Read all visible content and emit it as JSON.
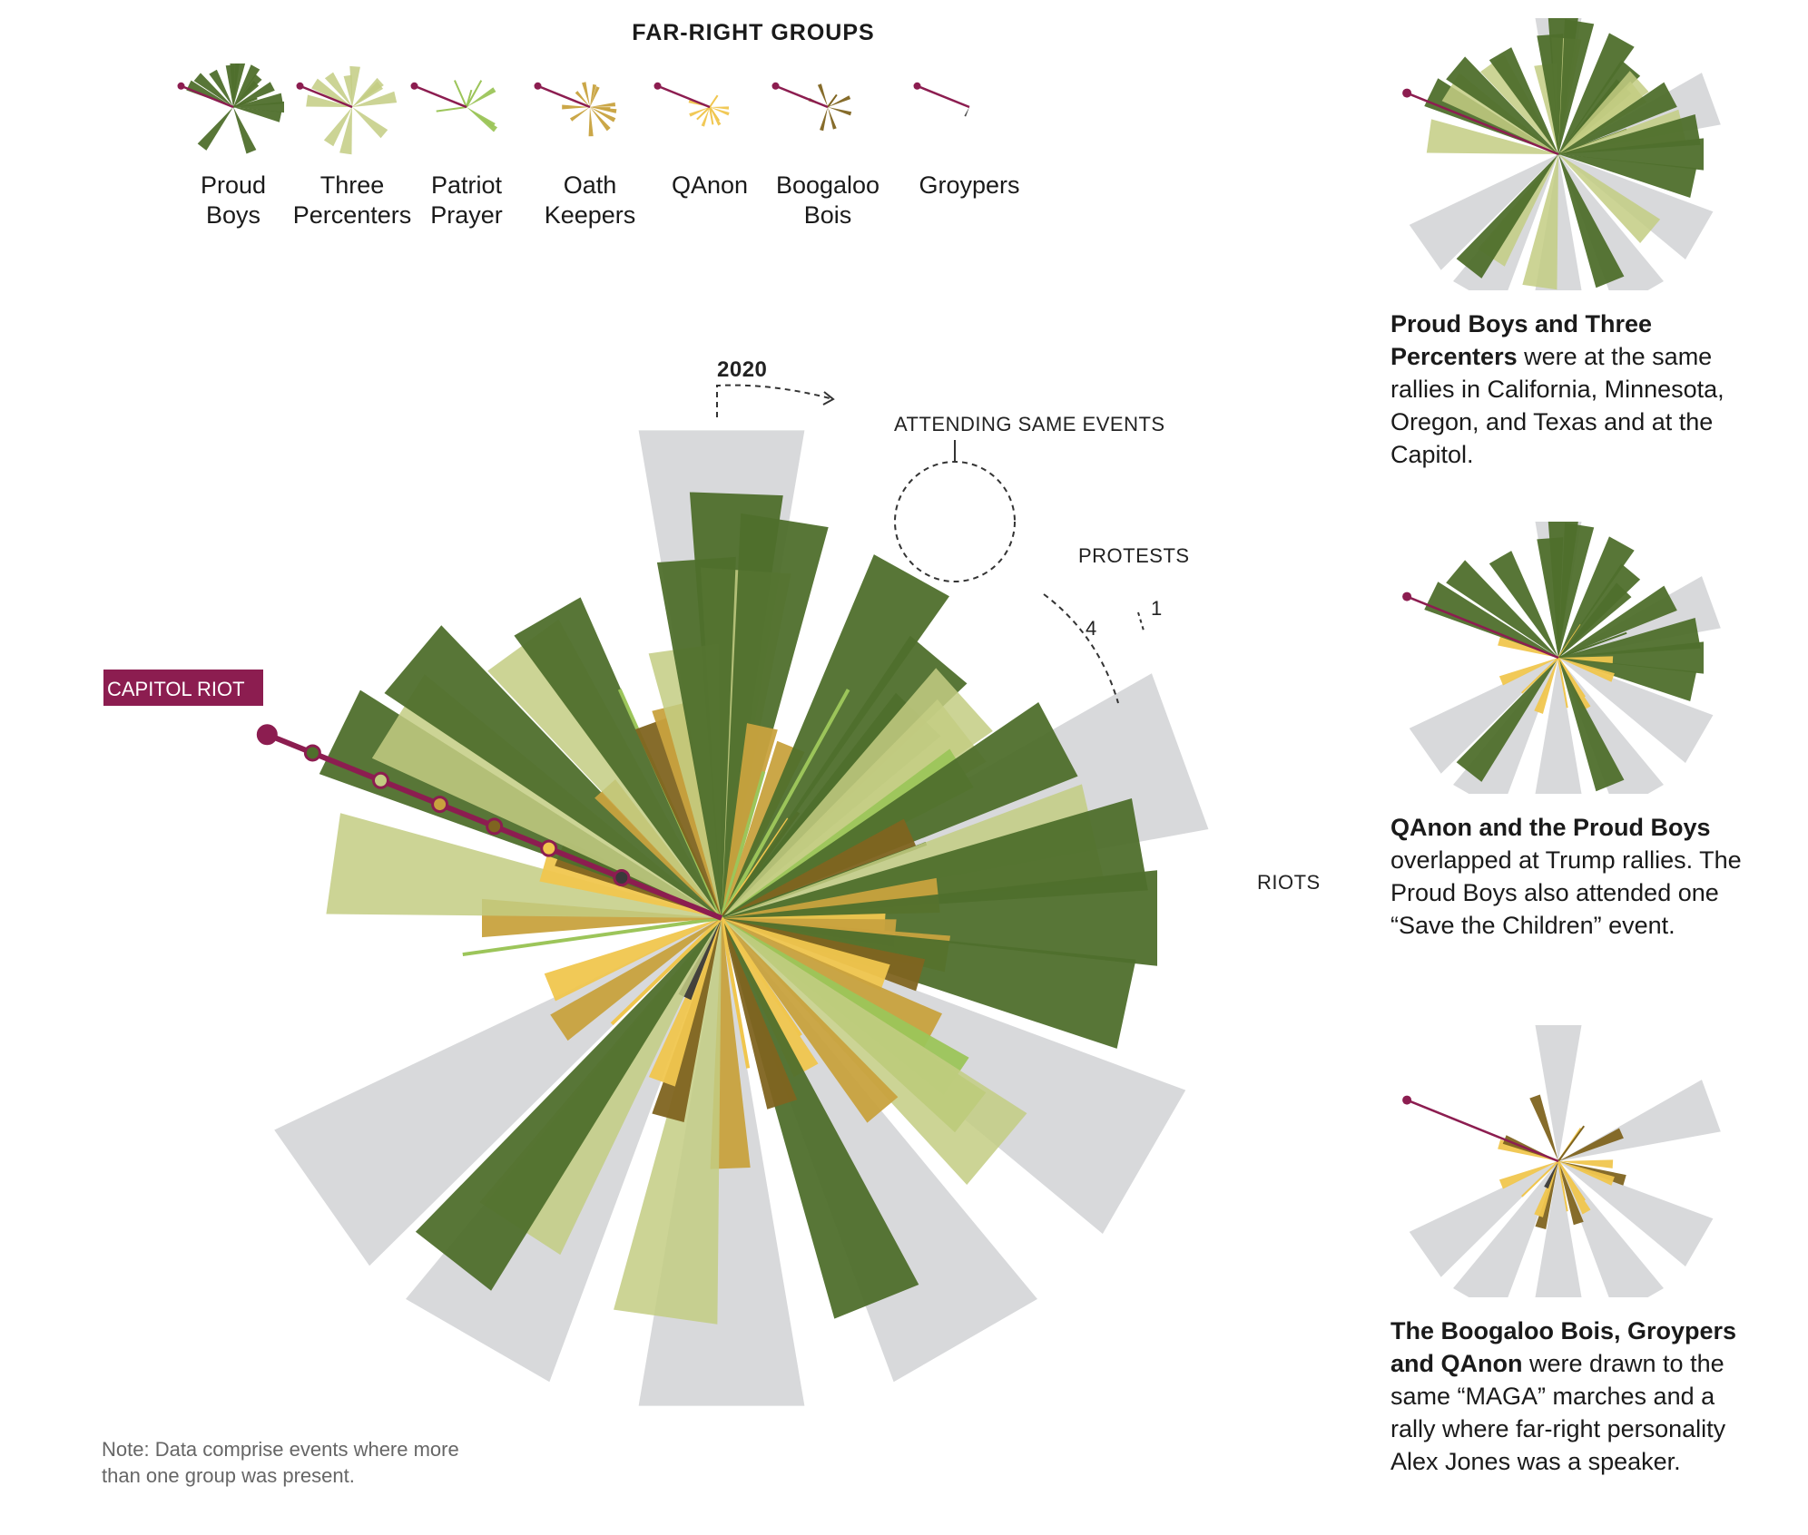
{
  "header": "FAR-RIGHT GROUPS",
  "colors": {
    "proud_boys": "#4f6f2c",
    "three_percenters": "#c3cc82",
    "patriot_prayer": "#9cc55a",
    "oath_keepers": "#c8a23e",
    "qanon": "#f0c64e",
    "boogaloo_bois": "#7f6420",
    "groypers": "#3a3a3a",
    "capitol_riot": "#8c1d50",
    "riots_wedge": "#d8d9db"
  },
  "legend": [
    {
      "label": "Proud\nBoys",
      "color_key": "proud_boys",
      "icon": "proud-boys-icon"
    },
    {
      "label": "Three\nPercenters",
      "color_key": "three_percenters",
      "icon": "three-percenters-icon"
    },
    {
      "label": "Patriot\nPrayer",
      "color_key": "patriot_prayer",
      "icon": "patriot-prayer-icon"
    },
    {
      "label": "Oath\nKeepers",
      "color_key": "oath_keepers",
      "icon": "oath-keepers-icon"
    },
    {
      "label": "QAnon",
      "color_key": "qanon",
      "icon": "qanon-icon"
    },
    {
      "label": "Boogaloo\nBois",
      "color_key": "boogaloo_bois",
      "icon": "boogaloo-bois-icon"
    },
    {
      "label": "Groypers",
      "color_key": "groypers",
      "icon": "groypers-icon"
    }
  ],
  "annotations": {
    "year": "2020",
    "attending": "ATTENDING SAME EVENTS",
    "protests": "PROTESTS",
    "scale_4": "4",
    "scale_1": "1",
    "riots": "RIOTS",
    "capitol_riot": "CAPITOL RIOT"
  },
  "panels": [
    {
      "bold": "Proud Boys and Three Percenters",
      "text": " were at the same rallies in California, Minnesota, Oregon, and Texas and at the Capitol."
    },
    {
      "bold": "QAnon and the Proud Boys",
      "text": " overlapped at Trump rallies. The Proud Boys also attended one “Save the Children” event."
    },
    {
      "bold": "The Boogaloo Bois, Groypers and QAnon",
      "text": " were drawn to the same “MAGA” marches and a rally where far-right personality Alex Jones was a speaker."
    }
  ],
  "note": "Note: Data comprise events where more than one group was present.",
  "chart_data": {
    "type": "radial-bar",
    "description_units": "each spoke is one event where more than one group was present; wedge length = number of group members/appearances (scale 1–4)",
    "event_types": [
      "Protests",
      "Riots",
      "Capitol riot"
    ],
    "groups": [
      "Proud Boys",
      "Three Percenters",
      "Patriot Prayer",
      "Oath Keepers",
      "QAnon",
      "Boogaloo Bois",
      "Groypers"
    ],
    "riot_angles": [
      {
        "angle": 0,
        "value": 4
      },
      {
        "angle": 70,
        "value": 4
      },
      {
        "angle": 120,
        "value": 4
      },
      {
        "angle": 150,
        "value": 4
      },
      {
        "angle": 180,
        "value": 4
      },
      {
        "angle": 210,
        "value": 4
      },
      {
        "angle": 235,
        "value": 4
      }
    ],
    "spokes": [
      {
        "angle": 2,
        "group": "proud_boys",
        "value": 3.9
      },
      {
        "angle": 4,
        "group": "three_percenters",
        "value": 3.2
      },
      {
        "angle": 9,
        "group": "proud_boys",
        "value": 3.7
      },
      {
        "angle": 12,
        "group": "oath_keepers",
        "value": 1.8
      },
      {
        "angle": 16,
        "group": "patriot_prayer",
        "value": 1.4
      },
      {
        "angle": 22,
        "group": "oath_keepers",
        "value": 1.7
      },
      {
        "angle": 29,
        "group": "proud_boys",
        "value": 3.6
      },
      {
        "angle": 29,
        "group": "patriot_prayer",
        "value": 2.4
      },
      {
        "angle": 34,
        "group": "qanon",
        "value": 1.1
      },
      {
        "angle": 36,
        "group": "boogaloo_bois",
        "value": 1.2
      },
      {
        "angle": 40,
        "group": "proud_boys",
        "value": 3.1
      },
      {
        "angle": 44,
        "group": "proud_boys",
        "value": 2.6
      },
      {
        "angle": 48,
        "group": "three_percenters",
        "value": 3.0
      },
      {
        "angle": 52,
        "group": "three_percenters",
        "value": 2.8
      },
      {
        "angle": 58,
        "group": "patriot_prayer",
        "value": 2.6
      },
      {
        "angle": 62,
        "group": "proud_boys",
        "value": 3.5
      },
      {
        "angle": 66,
        "group": "boogaloo_bois",
        "value": 1.9
      },
      {
        "angle": 70,
        "group": "proud_boys",
        "value": 2.0
      },
      {
        "angle": 77,
        "group": "three_percenters",
        "value": 3.5
      },
      {
        "angle": 80,
        "group": "proud_boys",
        "value": 3.9
      },
      {
        "angle": 84,
        "group": "oath_keepers",
        "value": 2.0
      },
      {
        "angle": 90,
        "group": "proud_boys",
        "value": 4.0
      },
      {
        "angle": 93,
        "group": "qanon",
        "value": 1.5
      },
      {
        "angle": 95,
        "group": "oath_keepers",
        "value": 1.6
      },
      {
        "angle": 99,
        "group": "oath_keepers",
        "value": 2.1
      },
      {
        "angle": 102,
        "group": "proud_boys",
        "value": 3.8
      },
      {
        "angle": 106,
        "group": "boogaloo_bois",
        "value": 1.9
      },
      {
        "angle": 110,
        "group": "qanon",
        "value": 1.6
      },
      {
        "angle": 118,
        "group": "oath_keepers",
        "value": 2.2
      },
      {
        "angle": 124,
        "group": "patriot_prayer",
        "value": 2.6
      },
      {
        "angle": 128,
        "group": "patriot_prayer",
        "value": 2.9
      },
      {
        "angle": 130,
        "group": "three_percenters",
        "value": 3.3
      },
      {
        "angle": 140,
        "group": "oath_keepers",
        "value": 2.3
      },
      {
        "angle": 146,
        "group": "qanon",
        "value": 1.3
      },
      {
        "angle": 151,
        "group": "qanon",
        "value": 1.6
      },
      {
        "angle": 158,
        "group": "proud_boys",
        "value": 3.8
      },
      {
        "angle": 162,
        "group": "boogaloo_bois",
        "value": 1.8
      },
      {
        "angle": 170,
        "group": "qanon",
        "value": 1.4
      },
      {
        "angle": 178,
        "group": "oath_keepers",
        "value": 2.3
      },
      {
        "angle": 188,
        "group": "three_percenters",
        "value": 3.7
      },
      {
        "angle": 195,
        "group": "boogaloo_bois",
        "value": 1.9
      },
      {
        "angle": 200,
        "group": "qanon",
        "value": 1.6
      },
      {
        "angle": 205,
        "group": "groypers",
        "value": 0.8
      },
      {
        "angle": 213,
        "group": "three_percenters",
        "value": 3.4
      },
      {
        "angle": 218,
        "group": "proud_boys",
        "value": 4.0
      },
      {
        "angle": 226,
        "group": "qanon",
        "value": 1.4
      },
      {
        "angle": 236,
        "group": "oath_keepers",
        "value": 1.8
      },
      {
        "angle": 248,
        "group": "qanon",
        "value": 1.7
      },
      {
        "angle": 262,
        "group": "patriot_prayer",
        "value": 2.4
      },
      {
        "angle": 270,
        "group": "oath_keepers",
        "value": 2.2
      },
      {
        "angle": 278,
        "group": "three_percenters",
        "value": 3.6
      },
      {
        "angle": 286,
        "group": "qanon",
        "value": 1.7
      },
      {
        "angle": 292,
        "group": "boogaloo_bois",
        "value": 1.6
      },
      {
        "angle": 296,
        "group": "proud_boys",
        "value": 3.9
      },
      {
        "angle": 302,
        "group": "three_percenters",
        "value": 3.5
      },
      {
        "angle": 310,
        "group": "proud_boys",
        "value": 3.7
      },
      {
        "angle": 318,
        "group": "oath_keepers",
        "value": 1.6
      },
      {
        "angle": 324,
        "group": "three_percenters",
        "value": 3.1
      },
      {
        "angle": 330,
        "group": "proud_boys",
        "value": 3.2
      },
      {
        "angle": 336,
        "group": "patriot_prayer",
        "value": 2.3
      },
      {
        "angle": 340,
        "group": "boogaloo_bois",
        "value": 1.9
      },
      {
        "angle": 346,
        "group": "oath_keepers",
        "value": 2.0
      },
      {
        "angle": 352,
        "group": "three_percenters",
        "value": 2.5
      },
      {
        "angle": 356,
        "group": "proud_boys",
        "value": 3.3
      }
    ],
    "capitol_riot": {
      "angle": 292,
      "groups": [
        "proud_boys",
        "three_percenters",
        "oath_keepers",
        "boogaloo_bois",
        "qanon",
        "groypers"
      ]
    }
  }
}
